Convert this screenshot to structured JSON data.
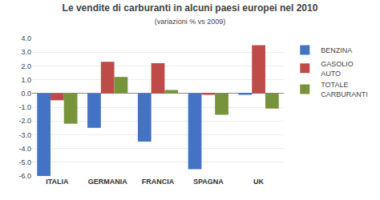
{
  "chart_data": {
    "type": "bar",
    "title": "Le vendite di carburanti in alcuni paesi europei nel 2010",
    "subtitle": "(variazioni % vs 2009)",
    "categories": [
      "ITALIA",
      "GERMANIA",
      "FRANCIA",
      "SPAGNA",
      "UK"
    ],
    "series": [
      {
        "name": "BENZINA",
        "color": "#4472C4",
        "values": [
          -6.0,
          -2.5,
          -3.5,
          -5.5,
          -0.1
        ]
      },
      {
        "name": "GASOLIO\nAUTO",
        "color": "#BE4B48",
        "values": [
          -0.5,
          2.3,
          2.2,
          -0.1,
          3.5
        ]
      },
      {
        "name": "TOTALE\nCARBURANTI",
        "color": "#77933C",
        "values": [
          -2.2,
          1.2,
          0.25,
          -1.55,
          -1.1
        ]
      }
    ],
    "ylim": [
      -6.0,
      4.0
    ],
    "yticks": [
      {
        "value": -6.0,
        "label": "-6.0"
      },
      {
        "value": -5.0,
        "label": "-5.0"
      },
      {
        "value": -4.0,
        "label": "-4.0"
      },
      {
        "value": -3.0,
        "label": "-3.0"
      },
      {
        "value": -2.0,
        "label": "-2.0"
      },
      {
        "value": -1.0,
        "label": "-1.0"
      },
      {
        "value": 0.0,
        "label": "0.0"
      },
      {
        "value": 1.0,
        "label": "1.0"
      },
      {
        "value": 2.0,
        "label": "2.0"
      },
      {
        "value": 3.0,
        "label": "3.0"
      },
      {
        "value": 4.0,
        "label": "4.0"
      }
    ],
    "grid": true,
    "legend": "right"
  }
}
